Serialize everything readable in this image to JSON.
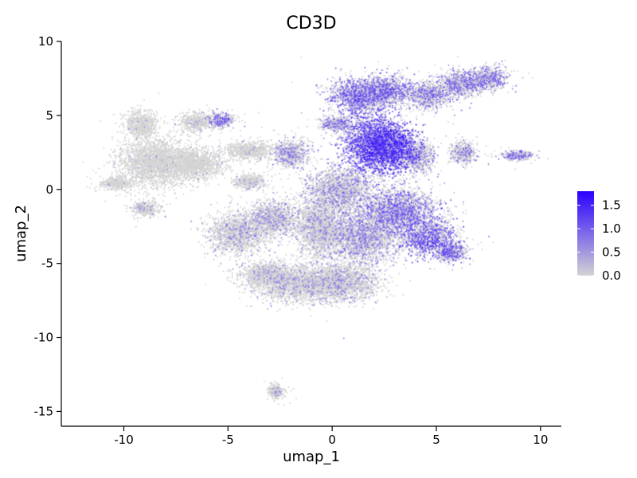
{
  "chart_data": {
    "type": "scatter",
    "title": "CD3D",
    "xlabel": "umap_1",
    "ylabel": "umap_2",
    "xlim": [
      -13,
      11
    ],
    "ylim": [
      -16,
      10
    ],
    "xticks": [
      -10,
      -5,
      0,
      5,
      10
    ],
    "xtick_labels": [
      "-10",
      "-5",
      "0",
      "5",
      "10"
    ],
    "yticks": [
      10,
      5,
      0,
      -5,
      -10,
      -15
    ],
    "ytick_labels": [
      "10",
      "5",
      "0",
      "-5",
      "-10",
      "-15"
    ],
    "grid": false,
    "legend": {
      "placement": "right",
      "ticks": [
        1.5,
        1.0,
        0.5,
        0.0
      ],
      "tick_labels": [
        "1.5",
        "1.0",
        "0.5",
        "0.0"
      ],
      "range": [
        0.0,
        1.8
      ],
      "low_color": "#d3d3d3",
      "high_color": "#2b00ff"
    },
    "expression_scale_max": 1.8,
    "clusters": [
      {
        "cx": -8.6,
        "cy": 1.8,
        "sx": 1.1,
        "sy": 1.1,
        "expr": 0.02
      },
      {
        "cx": -6.7,
        "cy": 1.7,
        "sx": 1.0,
        "sy": 0.7,
        "expr": 0.02
      },
      {
        "cx": -9.2,
        "cy": 4.4,
        "sx": 0.5,
        "sy": 0.6,
        "expr": 0.02
      },
      {
        "cx": -10.4,
        "cy": 0.4,
        "sx": 0.5,
        "sy": 0.3,
        "expr": 0.02
      },
      {
        "cx": -9.0,
        "cy": -1.3,
        "sx": 0.4,
        "sy": 0.3,
        "expr": 0.15
      },
      {
        "cx": -6.5,
        "cy": 4.5,
        "sx": 0.6,
        "sy": 0.4,
        "expr": 0.05
      },
      {
        "cx": -5.3,
        "cy": 4.7,
        "sx": 0.4,
        "sy": 0.3,
        "expr": 0.5
      },
      {
        "cx": -4.0,
        "cy": 2.6,
        "sx": 0.8,
        "sy": 0.4,
        "expr": 0.05
      },
      {
        "cx": -2.0,
        "cy": 2.4,
        "sx": 0.6,
        "sy": 0.6,
        "expr": 0.35
      },
      {
        "cx": -4.0,
        "cy": 0.5,
        "sx": 0.5,
        "sy": 0.3,
        "expr": 0.1
      },
      {
        "cx": 0.2,
        "cy": 4.4,
        "sx": 0.5,
        "sy": 0.3,
        "expr": 0.45
      },
      {
        "cx": -4.6,
        "cy": -3.0,
        "sx": 0.9,
        "sy": 0.9,
        "expr": 0.2
      },
      {
        "cx": -2.8,
        "cy": -2.0,
        "sx": 0.8,
        "sy": 0.8,
        "expr": 0.25
      },
      {
        "cx": -0.6,
        "cy": -2.5,
        "sx": 0.8,
        "sy": 1.4,
        "expr": 0.2
      },
      {
        "cx": 0.4,
        "cy": 0.0,
        "sx": 1.0,
        "sy": 1.0,
        "expr": 0.3
      },
      {
        "cx": 1.8,
        "cy": 3.0,
        "sx": 0.9,
        "sy": 1.3,
        "expr": 0.85
      },
      {
        "cx": 2.9,
        "cy": 2.8,
        "sx": 0.8,
        "sy": 1.1,
        "expr": 0.9
      },
      {
        "cx": 1.2,
        "cy": 6.3,
        "sx": 0.9,
        "sy": 0.8,
        "expr": 0.6
      },
      {
        "cx": 2.6,
        "cy": 6.6,
        "sx": 0.8,
        "sy": 0.7,
        "expr": 0.55
      },
      {
        "cx": 4.6,
        "cy": 6.4,
        "sx": 0.7,
        "sy": 0.6,
        "expr": 0.4
      },
      {
        "cx": 6.2,
        "cy": 7.1,
        "sx": 0.7,
        "sy": 0.6,
        "expr": 0.45
      },
      {
        "cx": 7.5,
        "cy": 7.5,
        "sx": 0.6,
        "sy": 0.5,
        "expr": 0.45
      },
      {
        "cx": 4.1,
        "cy": 2.2,
        "sx": 0.5,
        "sy": 0.7,
        "expr": 0.35
      },
      {
        "cx": 6.3,
        "cy": 2.5,
        "sx": 0.4,
        "sy": 0.5,
        "expr": 0.3
      },
      {
        "cx": 8.9,
        "cy": 2.3,
        "sx": 0.5,
        "sy": 0.2,
        "expr": 0.45
      },
      {
        "cx": 3.2,
        "cy": -1.5,
        "sx": 1.2,
        "sy": 1.0,
        "expr": 0.55
      },
      {
        "cx": 4.6,
        "cy": -3.3,
        "sx": 0.9,
        "sy": 0.8,
        "expr": 0.65
      },
      {
        "cx": 5.7,
        "cy": -4.3,
        "sx": 0.5,
        "sy": 0.4,
        "expr": 0.6
      },
      {
        "cx": 1.5,
        "cy": -3.2,
        "sx": 1.1,
        "sy": 1.2,
        "expr": 0.35
      },
      {
        "cx": -1.5,
        "cy": -6.4,
        "sx": 1.4,
        "sy": 0.8,
        "expr": 0.15
      },
      {
        "cx": 0.5,
        "cy": -6.3,
        "sx": 1.2,
        "sy": 0.8,
        "expr": 0.2
      },
      {
        "cx": -3.2,
        "cy": -5.8,
        "sx": 0.8,
        "sy": 0.6,
        "expr": 0.15
      },
      {
        "cx": -2.7,
        "cy": -13.7,
        "sx": 0.25,
        "sy": 0.3,
        "expr": 0.1
      }
    ]
  }
}
